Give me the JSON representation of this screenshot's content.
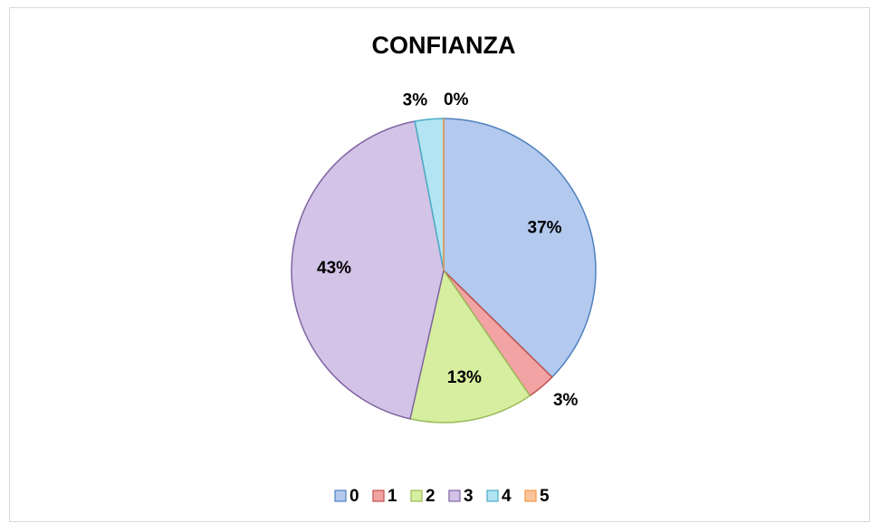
{
  "chart_data": {
    "type": "pie",
    "title": "CONFIANZA",
    "categories": [
      "0",
      "1",
      "2",
      "3",
      "4",
      "5"
    ],
    "values": [
      37,
      3,
      13,
      43,
      3,
      0
    ],
    "value_labels": [
      "37%",
      "3%",
      "13%",
      "43%",
      "3%",
      "0%"
    ],
    "colors": [
      "#b3c9ee",
      "#f2a3a3",
      "#d5ee9f",
      "#d3c3e7",
      "#b2e4f3",
      "#f9c49a"
    ],
    "edge_colors": [
      "#4f81bd",
      "#c0504d",
      "#9bbb59",
      "#8064a2",
      "#4bacc6",
      "#f79646"
    ],
    "legend": "bottom"
  }
}
